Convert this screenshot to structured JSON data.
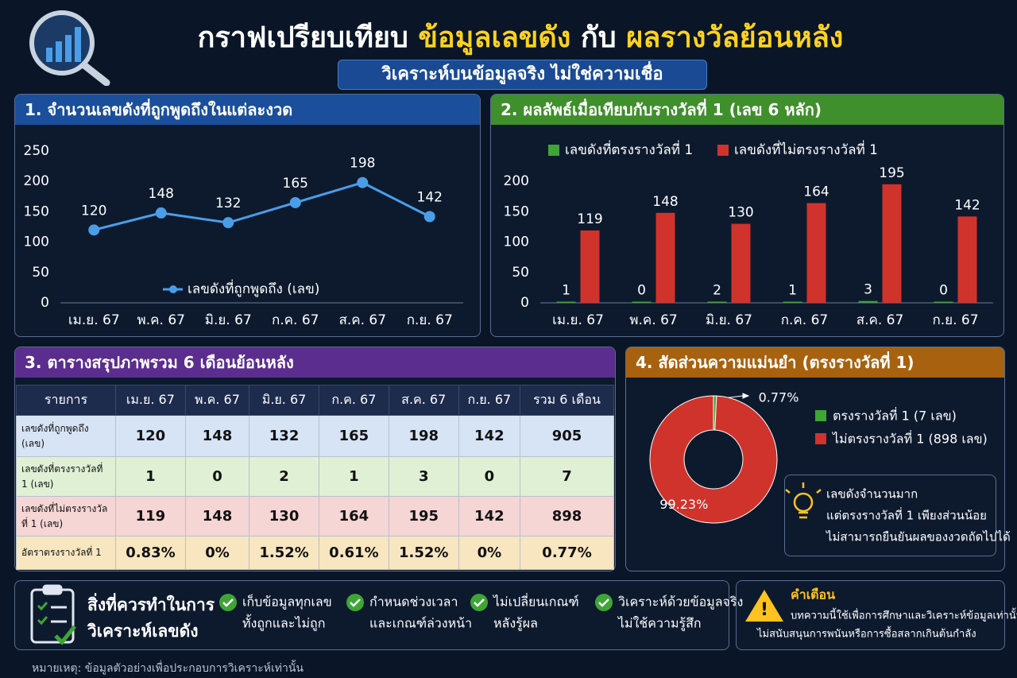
{
  "header": {
    "title_parts": [
      "กราฟเปรียบเทียบ",
      "ข้อมูลเลขดัง",
      "กับ",
      "ผลรางวัลย้อนหลัง"
    ],
    "subtitle": "วิเคราะห์บนข้อมูลจริง ไม่ใช่ความเชื่อ"
  },
  "chart_data": [
    {
      "type": "line",
      "title": "1. จำนวนเลขดังที่ถูกพูดถึงในแต่ละงวด",
      "categories": [
        "เม.ย. 67",
        "พ.ค. 67",
        "มิ.ย. 67",
        "ก.ค. 67",
        "ส.ค. 67",
        "ก.ย. 67"
      ],
      "series": [
        {
          "name": "เลขดังที่ถูกพูดถึง (เลข)",
          "color": "#4a9ee8",
          "values": [
            120,
            148,
            132,
            165,
            198,
            142
          ]
        }
      ],
      "ylim": [
        0,
        250
      ],
      "yticks": [
        0,
        50,
        100,
        150,
        200,
        250
      ],
      "grid": false,
      "legend": "bottom"
    },
    {
      "type": "bar",
      "title": "2. ผลลัพธ์เมื่อเทียบกับรางวัลที่ 1 (เลข 6 หลัก)",
      "categories": [
        "เม.ย. 67",
        "พ.ค. 67",
        "มิ.ย. 67",
        "ก.ค. 67",
        "ส.ค. 67",
        "ก.ย. 67"
      ],
      "series": [
        {
          "name": "เลขดังที่ตรงรางวัลที่ 1",
          "color": "#3fa535",
          "values": [
            1,
            0,
            2,
            1,
            3,
            0
          ]
        },
        {
          "name": "เลขดังที่ไม่ตรงรางวัลที่ 1",
          "color": "#d0332c",
          "values": [
            119,
            148,
            130,
            164,
            195,
            142
          ]
        }
      ],
      "ylim": [
        0,
        200
      ],
      "yticks": [
        0,
        50,
        100,
        150,
        200
      ],
      "grid": false,
      "legend": "top"
    },
    {
      "type": "pie",
      "title": "4. สัดส่วนความแม่นยำ (ตรงรางวัลที่ 1)",
      "categories": [
        "ตรงรางวัลที่ 1 (7 เลข)",
        "ไม่ตรงรางวัลที่ 1 (898 เลข)"
      ],
      "values": [
        0.77,
        99.23
      ],
      "value_labels": [
        "0.77%",
        "99.23%"
      ],
      "colors": [
        "#3fa535",
        "#d0332c"
      ],
      "annotations": [
        "เลขดังจำนวนมาก",
        "แต่ตรงรางวัลที่ 1 เพียงส่วนน้อย",
        "ไม่สามารถยืนยันผลของงวดถัดไปได้"
      ]
    }
  ],
  "table": {
    "title": "3. ตารางสรุปภาพรวม 6 เดือนย้อนหลัง",
    "header": [
      "รายการ",
      "เม.ย. 67",
      "พ.ค. 67",
      "มิ.ย. 67",
      "ก.ค. 67",
      "ส.ค. 67",
      "ก.ย. 67",
      "รวม 6 เดือน"
    ],
    "rows": [
      [
        "เลขดังที่ถูกพูดถึง (เลข)",
        120,
        148,
        132,
        165,
        198,
        142,
        905
      ],
      [
        "เลขดังที่ตรงรางวัลที่ 1 (เลข)",
        1,
        0,
        2,
        1,
        3,
        0,
        7
      ],
      [
        "เลขดังที่ไม่ตรงรางวัลที่ 1 (เลข)",
        119,
        148,
        130,
        164,
        195,
        142,
        898
      ],
      [
        "อัตราตรงรางวัลที่ 1",
        "0.83%",
        "0%",
        "1.52%",
        "0.61%",
        "1.52%",
        "0%",
        "0.77%"
      ]
    ]
  },
  "checklist": {
    "title": [
      "สิ่งที่ควรทำในการ",
      "วิเคราะห์เลขดัง"
    ],
    "items": [
      [
        "เก็บข้อมูลทุกเลข",
        "ทั้งถูกและไม่ถูก"
      ],
      [
        "กำหนดช่วงเวลา",
        "และเกณฑ์ล่วงหน้า"
      ],
      [
        "ไม่เปลี่ยนเกณฑ์",
        "หลังรู้ผล"
      ],
      [
        "วิเคราะห์ด้วยข้อมูลจริง",
        "ไม่ใช้ความรู้สึก"
      ]
    ]
  },
  "warning": {
    "title": "คำเตือน",
    "lines": [
      "บทความนี้ใช้เพื่อการศึกษาและวิเคราะห์ข้อมูลเท่านั้น",
      "ไม่สนับสนุนการพนันหรือการซื้อสลากเกินต้นกำลัง"
    ]
  },
  "note": "หมายเหตุ: ข้อมูลตัวอย่างเพื่อประกอบการวิเคราะห์เท่านั้น"
}
